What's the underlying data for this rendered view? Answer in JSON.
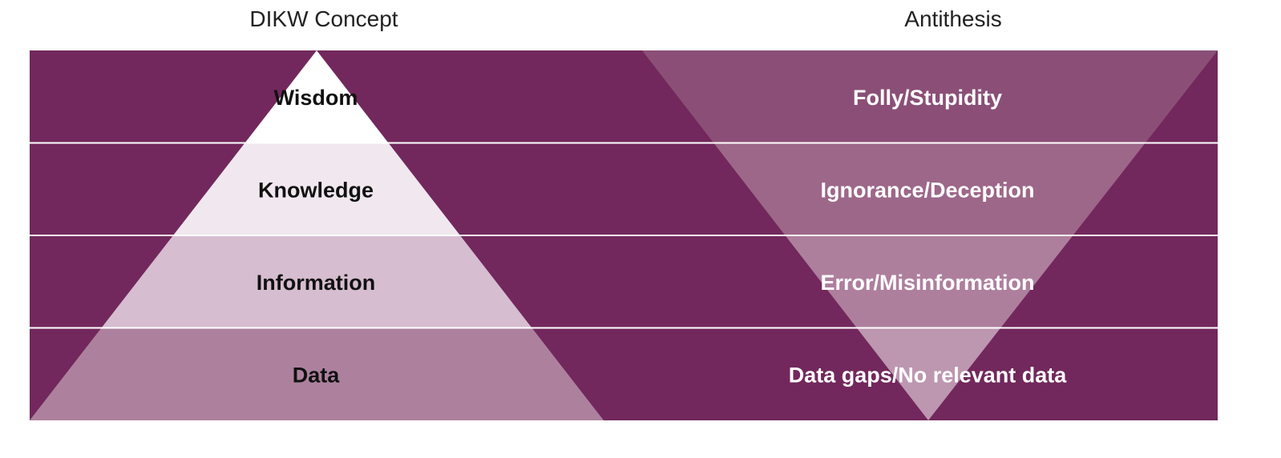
{
  "headings": {
    "left": "DIKW Concept",
    "right": "Antithesis"
  },
  "colors": {
    "background": "#72285c",
    "divider": "#ffffff",
    "pyramid_levels": [
      "#ffffff",
      "#f0e8ee",
      "#d6bdd0",
      "#ad819e"
    ],
    "inverted_levels": [
      "#8b4f77",
      "#9d6789",
      "#ae7f9d",
      "#bd96b0"
    ],
    "left_text": "#111111",
    "right_text": "#ffffff"
  },
  "levels": [
    {
      "concept": "Wisdom",
      "antithesis": "Folly/Stupidity"
    },
    {
      "concept": "Knowledge",
      "antithesis": "Ignorance/Deception"
    },
    {
      "concept": "Information",
      "antithesis": "Error/Misinformation"
    },
    {
      "concept": "Data",
      "antithesis": "Data gaps/No relevant data"
    }
  ]
}
